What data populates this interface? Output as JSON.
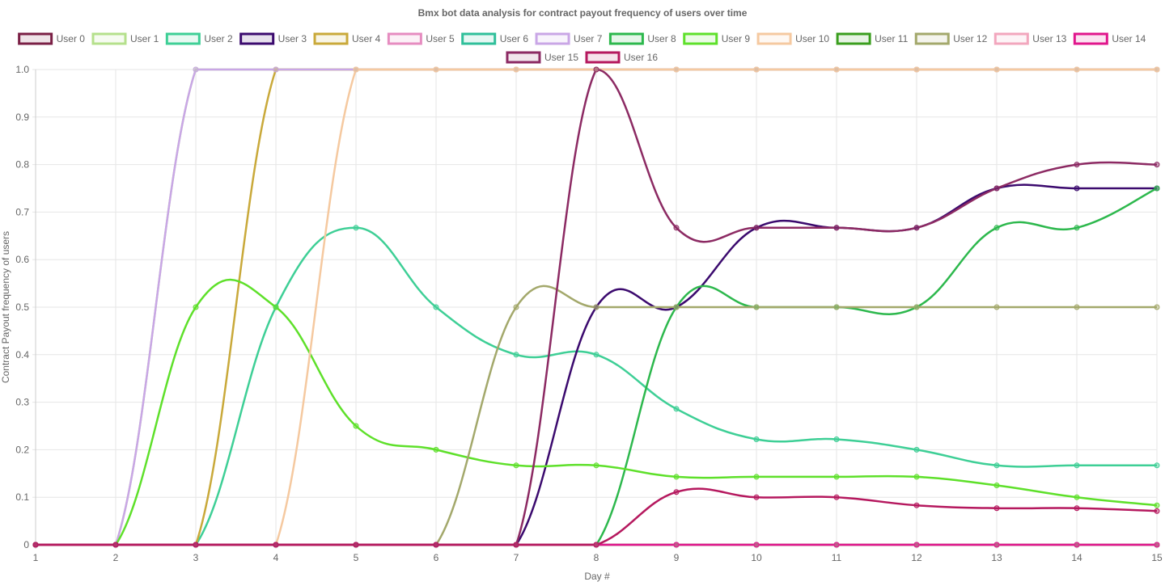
{
  "chart_data": {
    "type": "line",
    "title": "Bmx bot data analysis for contract payout frequency of users over time",
    "xlabel": "Day #",
    "ylabel": "Contract Payout frequency of users",
    "ylim": [
      0,
      1
    ],
    "grid": true,
    "legend": "top",
    "x": [
      1,
      2,
      3,
      4,
      5,
      6,
      7,
      8,
      9,
      10,
      11,
      12,
      13,
      14,
      15
    ],
    "yticks": [
      "0",
      "0.1",
      "0.2",
      "0.3",
      "0.4",
      "0.5",
      "0.6",
      "0.7",
      "0.8",
      "0.9",
      "1.0"
    ],
    "series": [
      {
        "name": "User 0",
        "color": "#7a1f45",
        "values": [
          0,
          0,
          0,
          0,
          0,
          0,
          0,
          0,
          0,
          0,
          0,
          0,
          0,
          0,
          0
        ]
      },
      {
        "name": "User 1",
        "color": "#b5e08c",
        "values": [
          0,
          0,
          1,
          1,
          1,
          1,
          1,
          1,
          1,
          1,
          1,
          1,
          1,
          1,
          1
        ]
      },
      {
        "name": "User 2",
        "color": "#3ecf96",
        "values": [
          0,
          0,
          0,
          0.5,
          0.667,
          0.5,
          0.4,
          0.4,
          0.286,
          0.222,
          0.222,
          0.2,
          0.167,
          0.167,
          0.167
        ]
      },
      {
        "name": "User 3",
        "color": "#3b0a6e",
        "values": [
          0,
          0,
          0,
          0,
          0,
          0,
          0,
          0.5,
          0.5,
          0.667,
          0.667,
          0.667,
          0.75,
          0.75,
          0.75
        ]
      },
      {
        "name": "User 4",
        "color": "#c9a93a",
        "values": [
          0,
          0,
          0,
          1,
          1,
          1,
          1,
          1,
          1,
          1,
          1,
          1,
          1,
          1,
          1
        ]
      },
      {
        "name": "User 5",
        "color": "#e68cc0",
        "values": [
          0,
          0,
          0,
          0,
          0,
          0,
          0,
          0,
          0,
          0,
          0,
          0,
          0,
          0,
          0
        ]
      },
      {
        "name": "User 6",
        "color": "#2fbf9a",
        "values": [
          0,
          0,
          0,
          0,
          0,
          0,
          0,
          0,
          0,
          0,
          0,
          0,
          0,
          0,
          0
        ]
      },
      {
        "name": "User 7",
        "color": "#c9a6e6",
        "values": [
          0,
          0,
          1,
          1,
          1,
          1,
          1,
          1,
          1,
          1,
          1,
          1,
          1,
          1,
          1
        ]
      },
      {
        "name": "User 8",
        "color": "#2db84d",
        "values": [
          0,
          0,
          0,
          0,
          0,
          0,
          0,
          0,
          0.5,
          0.5,
          0.5,
          0.5,
          0.667,
          0.667,
          0.75
        ]
      },
      {
        "name": "User 9",
        "color": "#5ee02a",
        "values": [
          0,
          0,
          0.5,
          0.5,
          0.25,
          0.2,
          0.167,
          0.167,
          0.143,
          0.143,
          0.143,
          0.143,
          0.125,
          0.1,
          0.083
        ]
      },
      {
        "name": "User 10",
        "color": "#f5c9a0",
        "values": [
          0,
          0,
          0,
          0,
          1,
          1,
          1,
          1,
          1,
          1,
          1,
          1,
          1,
          1,
          1
        ]
      },
      {
        "name": "User 11",
        "color": "#3a9e1e",
        "values": [
          0,
          0,
          0,
          0,
          0,
          0,
          0,
          0,
          0,
          0,
          0,
          0,
          0,
          0,
          0
        ]
      },
      {
        "name": "User 12",
        "color": "#a3a86b",
        "values": [
          0,
          0,
          0,
          0,
          0,
          0,
          0.5,
          0.5,
          0.5,
          0.5,
          0.5,
          0.5,
          0.5,
          0.5,
          0.5
        ]
      },
      {
        "name": "User 13",
        "color": "#f2a6bd",
        "values": [
          0,
          0,
          0,
          0,
          0,
          0,
          0,
          0,
          0,
          0,
          0,
          0,
          0,
          0,
          0
        ]
      },
      {
        "name": "User 14",
        "color": "#e0168c",
        "values": [
          0,
          0,
          0,
          0,
          0,
          0,
          0,
          0,
          0,
          0,
          0,
          0,
          0,
          0,
          0
        ]
      },
      {
        "name": "User 15",
        "color": "#8c2a63",
        "values": [
          0,
          0,
          0,
          0,
          0,
          0,
          0,
          1,
          0.667,
          0.667,
          0.667,
          0.667,
          0.75,
          0.8,
          0.8
        ]
      },
      {
        "name": "User 16",
        "color": "#b5185e",
        "values": [
          0,
          0,
          0,
          0,
          0,
          0,
          0,
          0,
          0.111,
          0.1,
          0.1,
          0.083,
          0.077,
          0.077,
          0.071
        ]
      }
    ]
  }
}
